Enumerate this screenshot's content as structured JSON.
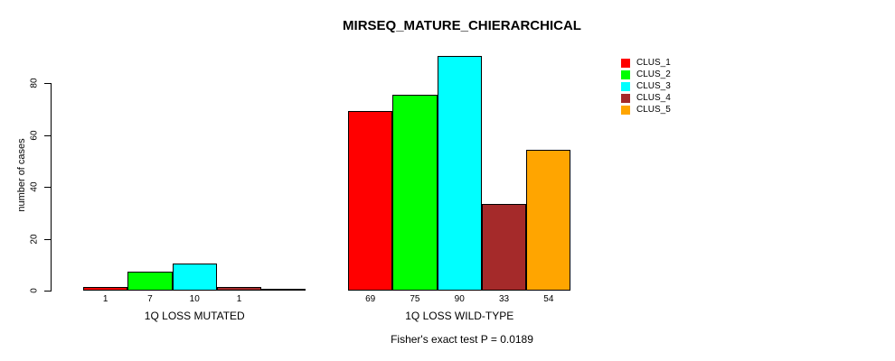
{
  "chart_data": {
    "type": "bar",
    "title": "MIRSEQ_MATURE_CHIERARCHICAL",
    "ylabel": "number of cases",
    "xlabel": "",
    "ylim": [
      0,
      90
    ],
    "yticks": [
      0,
      20,
      40,
      60,
      80
    ],
    "grid": false,
    "legend_position": "right",
    "categories": [
      "1Q LOSS MUTATED",
      "1Q LOSS WILD-TYPE"
    ],
    "series": [
      {
        "name": "CLUS_1",
        "color": "#FF0000",
        "values": [
          1,
          69
        ]
      },
      {
        "name": "CLUS_2",
        "color": "#00FF00",
        "values": [
          7,
          75
        ]
      },
      {
        "name": "CLUS_3",
        "color": "#00FFFF",
        "values": [
          10,
          90
        ]
      },
      {
        "name": "CLUS_4",
        "color": "#A52A2A",
        "values": [
          1,
          33
        ]
      },
      {
        "name": "CLUS_5",
        "color": "#FFA500",
        "values": [
          0,
          54
        ]
      }
    ],
    "bar_value_labels": [
      [
        "1",
        "7",
        "10",
        "1",
        ""
      ],
      [
        "69",
        "75",
        "90",
        "33",
        "54"
      ]
    ],
    "annotation": "Fisher's exact test P = 0.0189"
  }
}
